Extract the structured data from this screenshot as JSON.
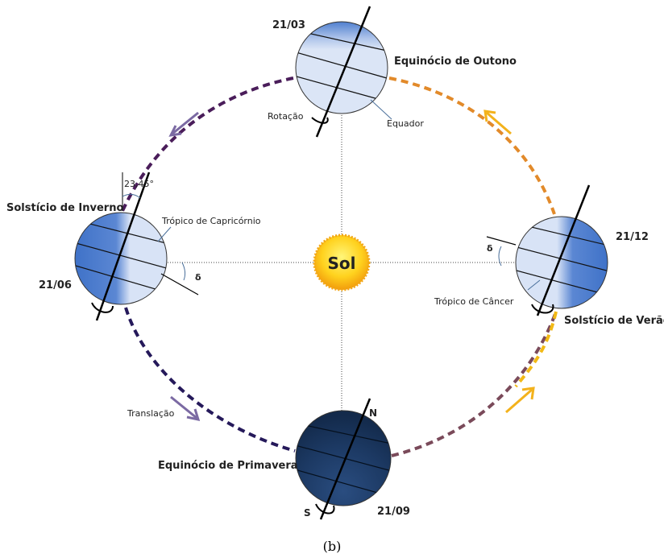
{
  "diagram": {
    "sun_label": "Sol",
    "top": {
      "date": "21/03",
      "name": "Equinócio de Outono",
      "rotation_label": "Rotação",
      "equator_label": "Equador"
    },
    "left": {
      "date": "21/06",
      "name": "Solstício de Inverno",
      "angle_label": "23,45°",
      "tropic_label": "Trópico de Capricórnio",
      "delta": "δ"
    },
    "right": {
      "date": "21/12",
      "name": "Solstício de Verão",
      "tropic_label": "Trópico de Câncer",
      "delta": "δ"
    },
    "bottom": {
      "date": "21/09",
      "name": "Equinócio de Primavera",
      "north": "N",
      "south": "S"
    },
    "translation_label": "Translação",
    "caption": "(b)",
    "colors": {
      "orbit_dark": "#3f1f5e",
      "orbit_orange": "#e08a2a",
      "orbit_yellow": "#f0b818",
      "earth_light": "#d9e3f5",
      "earth_mid": "#4f7fcf",
      "earth_dark": "#1a355d",
      "sun_core": "#fff25a",
      "sun_edge": "#f3a10f",
      "arrow_purple": "#7a6a9e",
      "arrow_yellow": "#f4b81e"
    }
  }
}
